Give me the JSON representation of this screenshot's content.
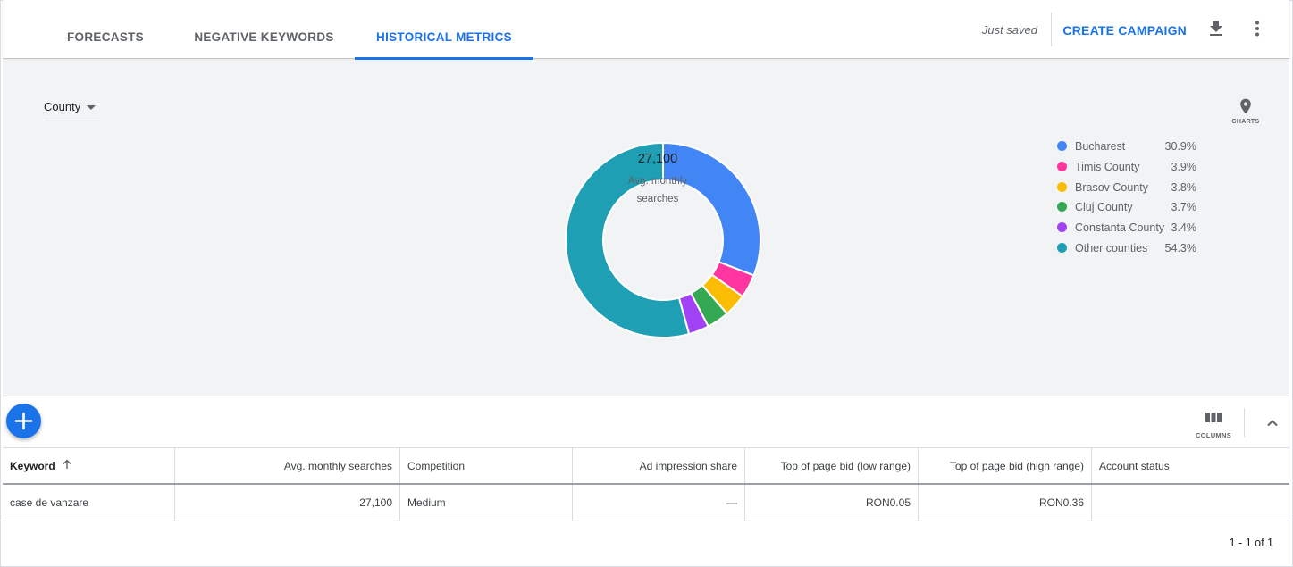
{
  "tabs": [
    {
      "label": "FORECASTS",
      "active": false
    },
    {
      "label": "NEGATIVE KEYWORDS",
      "active": false
    },
    {
      "label": "HISTORICAL METRICS",
      "active": true
    }
  ],
  "header": {
    "status_text": "Just saved",
    "create_campaign_label": "CREATE CAMPAIGN",
    "download_icon": "download-icon",
    "more_icon": "more-vert-icon"
  },
  "chart_controls": {
    "dropdown_value": "County",
    "charts_button_label": "CHARTS",
    "charts_icon": "location-pin-icon"
  },
  "chart_data": {
    "type": "pie",
    "donut": true,
    "center_value": "27,100",
    "center_label": "Avg. monthly searches",
    "categories": [
      "Bucharest",
      "Timis County",
      "Brasov County",
      "Cluj County",
      "Constanta County",
      "Other counties"
    ],
    "values": [
      30.9,
      3.9,
      3.8,
      3.7,
      3.4,
      54.3
    ],
    "value_labels": [
      "30.9%",
      "3.9%",
      "3.8%",
      "3.7%",
      "3.4%",
      "54.3%"
    ],
    "colors": [
      "#4285f4",
      "#ff36a0",
      "#fbbc04",
      "#34a853",
      "#a142f4",
      "#1e9fb3"
    ],
    "legend_position": "right"
  },
  "toolbar": {
    "add_icon": "add-icon",
    "columns_label": "COLUMNS",
    "columns_icon": "columns-icon",
    "collapse_icon": "chevron-up-icon"
  },
  "table": {
    "headers": [
      "Keyword",
      "Avg. monthly searches",
      "Competition",
      "Ad impression share",
      "Top of page bid (low range)",
      "Top of page bid (high range)",
      "Account status"
    ],
    "sort_icon": "arrow-up-icon",
    "rows": [
      [
        "case de vanzare",
        "27,100",
        "Medium",
        "—",
        "RON0.05",
        "RON0.36",
        ""
      ]
    ]
  },
  "pagination": {
    "text": "1 - 1 of 1"
  }
}
